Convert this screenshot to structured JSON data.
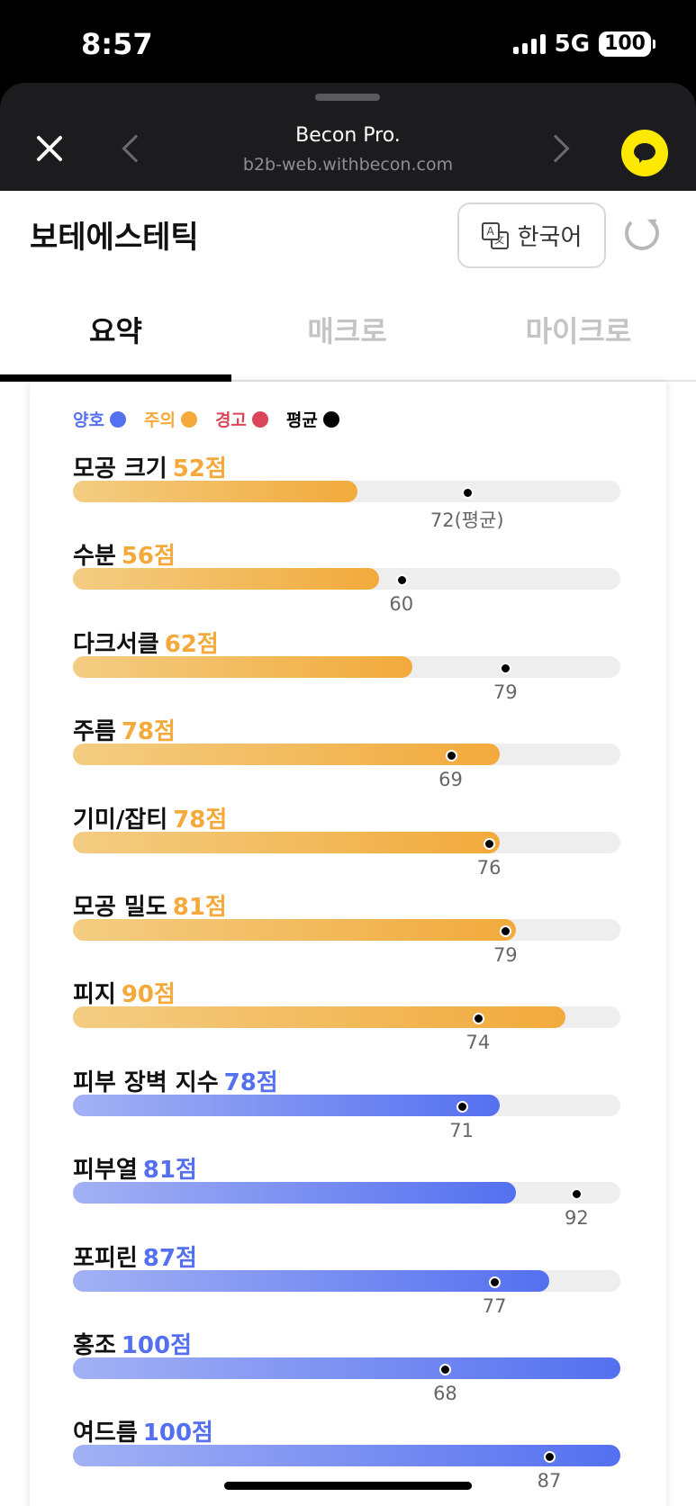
{
  "status_bar": {
    "time": "8:57",
    "network": "5G",
    "battery": "100"
  },
  "browser": {
    "title": "Becon Pro.",
    "url": "b2b-web.withbecon.com"
  },
  "header": {
    "title": "보테에스테틱",
    "language_label": "한국어"
  },
  "tabs": [
    {
      "label": "요약",
      "active": true
    },
    {
      "label": "매크로",
      "active": false
    },
    {
      "label": "마이크로",
      "active": false
    }
  ],
  "legend": [
    {
      "label": "양호",
      "color": "#5470f0"
    },
    {
      "label": "주의",
      "color": "#f4a93a"
    },
    {
      "label": "경고",
      "color": "#d9465a"
    },
    {
      "label": "평균",
      "color": "#000000"
    }
  ],
  "metrics": [
    {
      "name": "모공 크기",
      "score_text": "52점",
      "score": 52,
      "average_text": "72(평균)",
      "average": 72,
      "status": "주의"
    },
    {
      "name": "수분",
      "score_text": "56점",
      "score": 56,
      "average_text": "60",
      "average": 60,
      "status": "주의"
    },
    {
      "name": "다크서클",
      "score_text": "62점",
      "score": 62,
      "average_text": "79",
      "average": 79,
      "status": "주의"
    },
    {
      "name": "주름",
      "score_text": "78점",
      "score": 78,
      "average_text": "69",
      "average": 69,
      "status": "주의"
    },
    {
      "name": "기미/잡티",
      "score_text": "78점",
      "score": 78,
      "average_text": "76",
      "average": 76,
      "status": "주의"
    },
    {
      "name": "모공 밀도",
      "score_text": "81점",
      "score": 81,
      "average_text": "79",
      "average": 79,
      "status": "주의"
    },
    {
      "name": "피지",
      "score_text": "90점",
      "score": 90,
      "average_text": "74",
      "average": 74,
      "status": "주의"
    },
    {
      "name": "피부 장벽 지수",
      "score_text": "78점",
      "score": 78,
      "average_text": "71",
      "average": 71,
      "status": "양호"
    },
    {
      "name": "피부열",
      "score_text": "81점",
      "score": 81,
      "average_text": "92",
      "average": 92,
      "status": "양호"
    },
    {
      "name": "포피린",
      "score_text": "87점",
      "score": 87,
      "average_text": "77",
      "average": 77,
      "status": "양호"
    },
    {
      "name": "홍조",
      "score_text": "100점",
      "score": 100,
      "average_text": "68",
      "average": 68,
      "status": "양호"
    },
    {
      "name": "여드름",
      "score_text": "100점",
      "score": 100,
      "average_text": "87",
      "average": 87,
      "status": "양호"
    }
  ]
}
